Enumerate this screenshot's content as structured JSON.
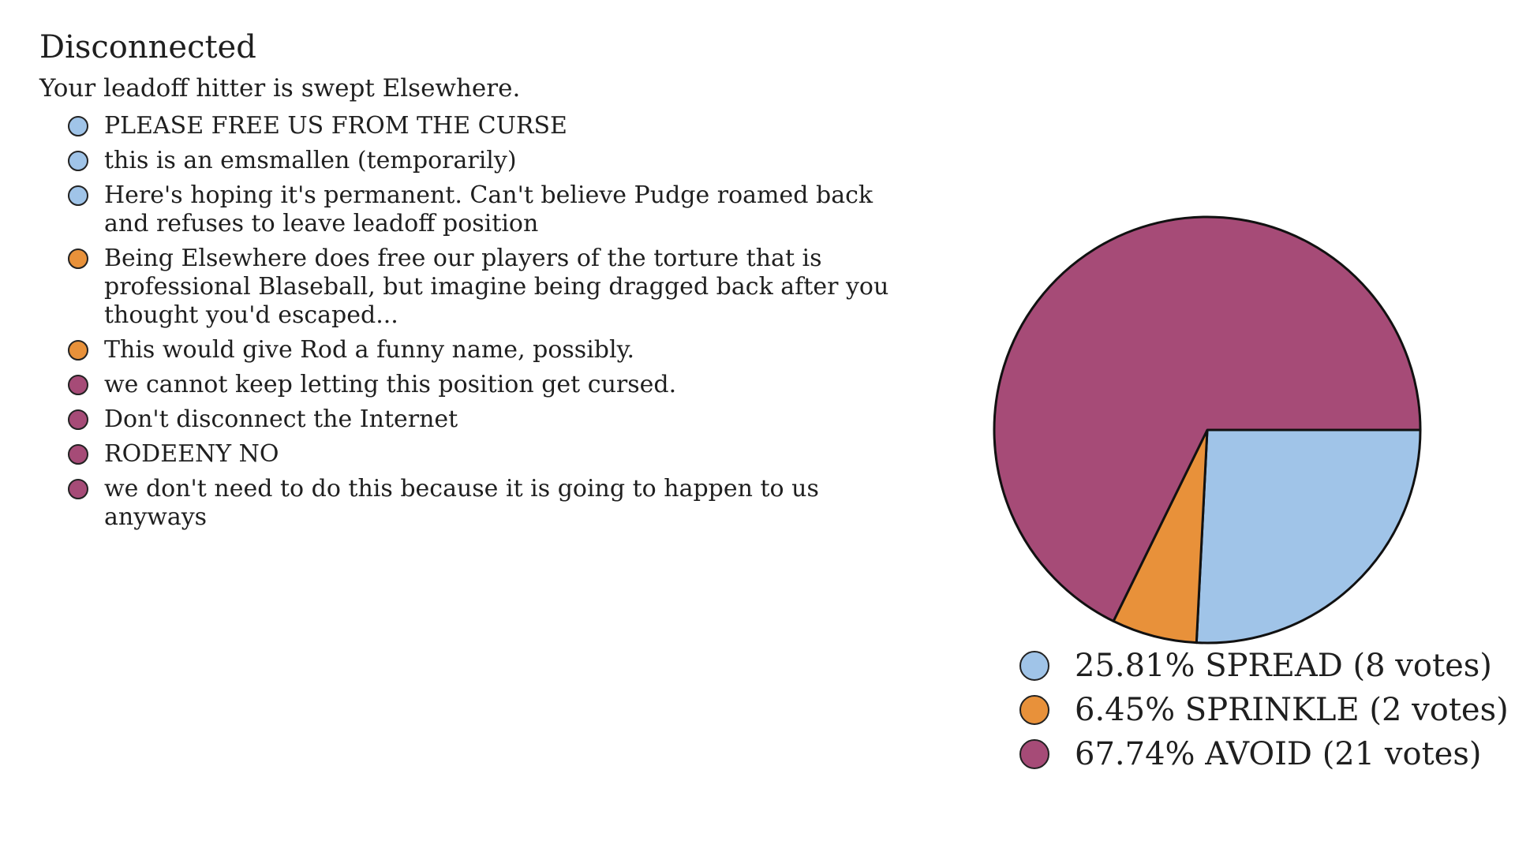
{
  "title": "Disconnected",
  "subtitle": "Your leadoff hitter is swept Elsewhere.",
  "colors": {
    "SPREAD": "#a0c4e8",
    "SPRINKLE": "#e8913a",
    "AVOID": "#a64b77",
    "outline": "#111111"
  },
  "comments": [
    {
      "text": "PLEASE FREE US FROM THE CURSE",
      "choice": "SPREAD"
    },
    {
      "text": "this is an emsmallen (temporarily)",
      "choice": "SPREAD"
    },
    {
      "text": "Here's hoping it's permanent. Can't believe Pudge roamed back and refuses to leave leadoff position",
      "choice": "SPREAD"
    },
    {
      "text": "Being Elsewhere does free our players of the torture that is professional Blaseball, but imagine being dragged back after you thought you'd escaped...",
      "choice": "SPRINKLE"
    },
    {
      "text": "This would give Rod a funny name, possibly.",
      "choice": "SPRINKLE"
    },
    {
      "text": "we cannot keep letting this position get cursed.",
      "choice": "AVOID"
    },
    {
      "text": "Don't disconnect the Internet",
      "choice": "AVOID"
    },
    {
      "text": "RODEENY NO",
      "choice": "AVOID"
    },
    {
      "text": "we don't need to do this because it is going to happen to us anyways",
      "choice": "AVOID"
    }
  ],
  "chart_data": {
    "type": "pie",
    "title": "",
    "categories": [
      "SPREAD",
      "SPRINKLE",
      "AVOID"
    ],
    "values": [
      8,
      2,
      21
    ],
    "percentages": [
      25.81,
      6.45,
      67.74
    ],
    "legend_labels": [
      "25.81% SPREAD (8 votes)",
      "6.45% SPRINKLE (2 votes)",
      "67.74% AVOID (21 votes)"
    ],
    "legend_position": "bottom"
  }
}
